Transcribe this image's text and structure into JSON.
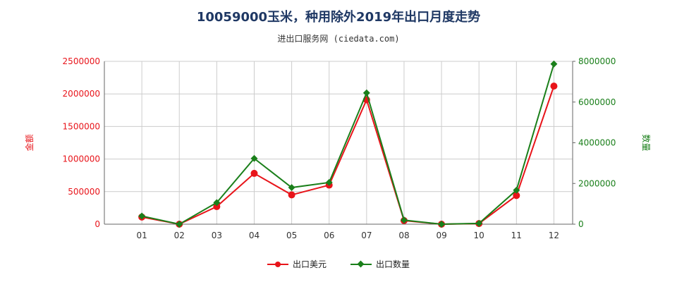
{
  "title": "10059000玉米，种用除外2019年出口月度走势",
  "subtitle": "进出口服务网 (ciedata.com)",
  "colors": {
    "series1": "#e8141a",
    "series2": "#1a7f1a",
    "grid": "#cccccc",
    "axis": "#666666"
  },
  "chart_data": {
    "type": "line",
    "categories": [
      "01",
      "02",
      "03",
      "04",
      "05",
      "06",
      "07",
      "08",
      "09",
      "10",
      "11",
      "12"
    ],
    "left_axis": {
      "label": "金额",
      "ylim": [
        0,
        2500000
      ],
      "ticks": [
        "0",
        "500000",
        "1000000",
        "1500000",
        "2000000",
        "2500000"
      ]
    },
    "right_axis": {
      "label": "数量",
      "ylim": [
        0,
        8000000
      ],
      "ticks": [
        "0",
        "2000000",
        "4000000",
        "6000000",
        "8000000"
      ]
    },
    "series": [
      {
        "name": "出口美元",
        "axis": "left",
        "marker": "circle",
        "values": [
          110000,
          0,
          270000,
          780000,
          450000,
          600000,
          1910000,
          55000,
          0,
          10000,
          440000,
          2120000
        ]
      },
      {
        "name": "出口数量",
        "axis": "right",
        "marker": "diamond",
        "values": [
          400000,
          0,
          1060000,
          3230000,
          1800000,
          2050000,
          6450000,
          200000,
          0,
          40000,
          1670000,
          7870000
        ]
      }
    ],
    "grid": true,
    "legend_position": "bottom"
  }
}
